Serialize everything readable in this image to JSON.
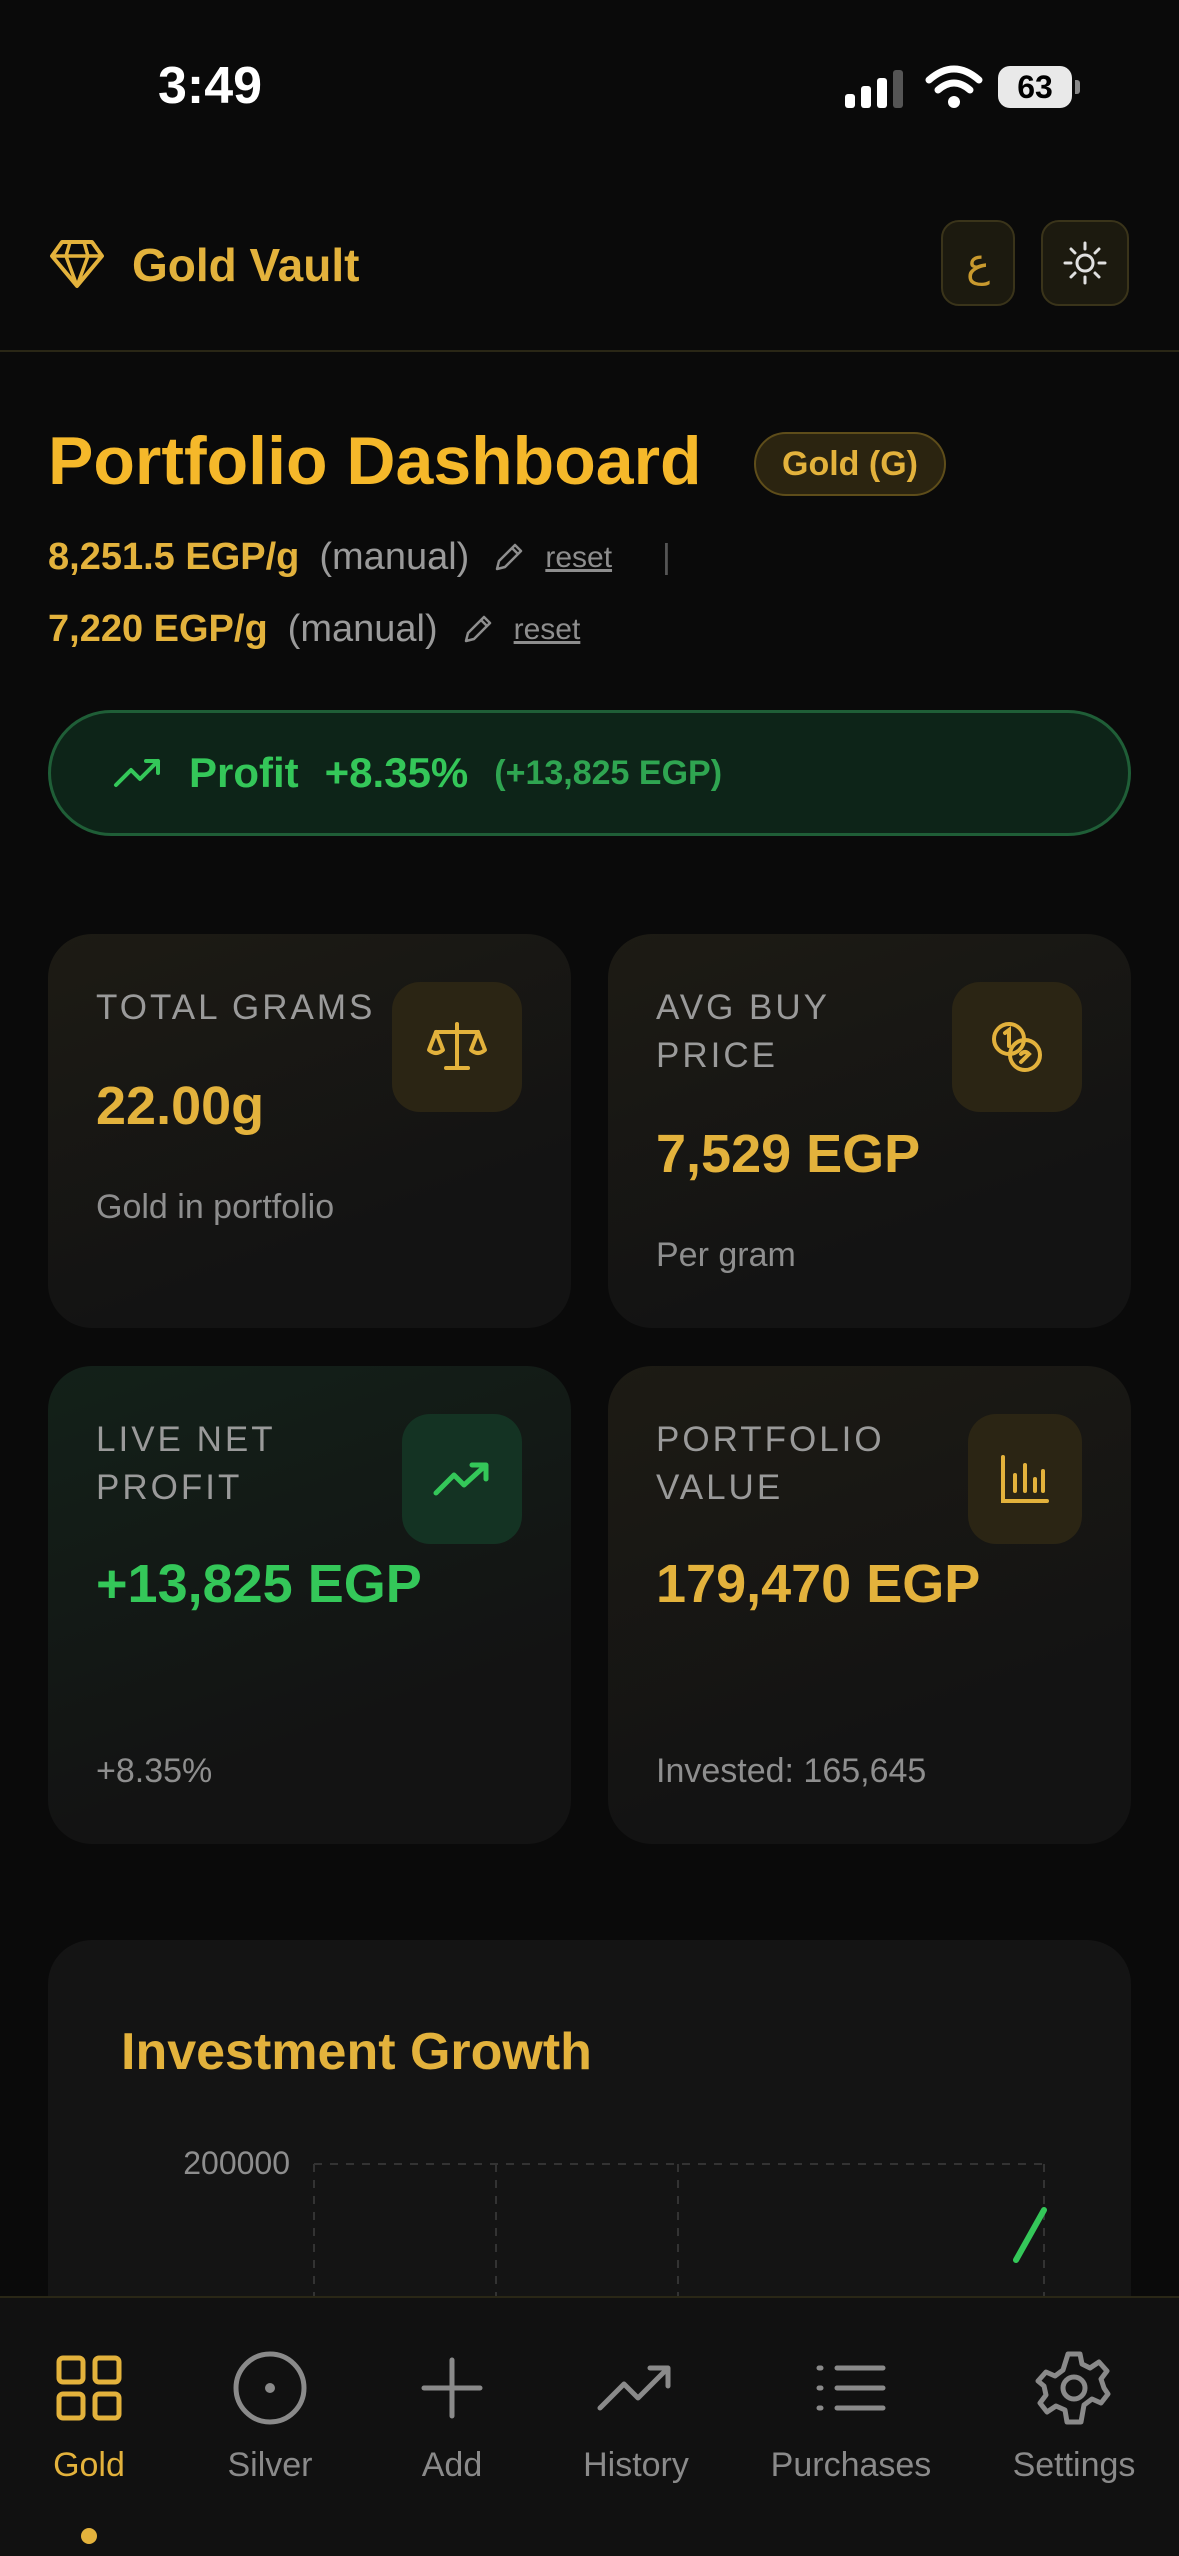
{
  "status": {
    "time": "3:49",
    "battery": "63"
  },
  "header": {
    "app_title": "Gold Vault",
    "lang_button": "ع"
  },
  "page": {
    "title": "Portfolio Dashboard",
    "metal_badge": "Gold (G)",
    "price_1": {
      "value": "8,251.5 EGP/g",
      "source": "(manual)",
      "reset": "reset",
      "separator": "|"
    },
    "price_2": {
      "value": "7,220 EGP/g",
      "source": "(manual)",
      "reset": "reset"
    }
  },
  "profit_banner": {
    "label": "Profit",
    "percent": "+8.35%",
    "amount": "(+13,825 EGP)"
  },
  "cards": [
    {
      "label": "TOTAL GRAMS",
      "value": "22.00g",
      "sub": "Gold in portfolio",
      "icon": "scale-icon"
    },
    {
      "label": "AVG BUY PRICE",
      "value": "7,529 EGP",
      "sub": "Per gram",
      "icon": "coins-icon"
    },
    {
      "label": "LIVE NET PROFIT",
      "value": "+13,825 EGP",
      "sub": "+8.35%",
      "icon": "trending-up-icon"
    },
    {
      "label": "PORTFOLIO VALUE",
      "value": "179,470 EGP",
      "sub": "Invested: 165,645",
      "icon": "bar-chart-icon"
    }
  ],
  "chart": {
    "title": "Investment Growth",
    "y_tick": "200000"
  },
  "chart_data": {
    "type": "line",
    "title": "Investment Growth",
    "yticks": [
      "200000"
    ],
    "ylim": [
      0,
      200000
    ],
    "series": [
      {
        "values": []
      }
    ]
  },
  "nav": [
    {
      "label": "Gold",
      "icon": "grid-icon",
      "active": true
    },
    {
      "label": "Silver",
      "icon": "circle-dot-icon"
    },
    {
      "label": "Add",
      "icon": "plus-icon"
    },
    {
      "label": "History",
      "icon": "trending-up-icon"
    },
    {
      "label": "Purchases",
      "icon": "list-icon"
    },
    {
      "label": "Settings",
      "icon": "gear-icon"
    }
  ],
  "colors": {
    "gold": "#e3b23c",
    "profit_green": "#34c759",
    "background": "#0a0a0a"
  }
}
